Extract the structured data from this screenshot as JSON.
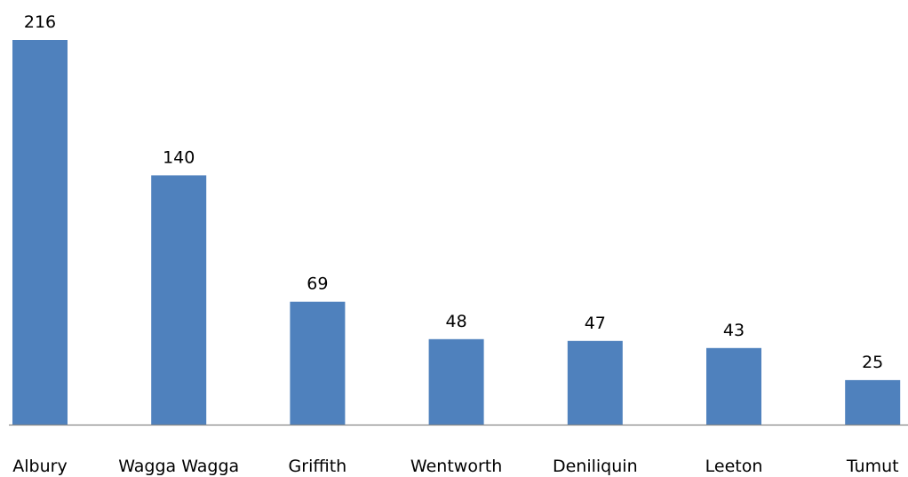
{
  "chart_data": {
    "type": "bar",
    "title": "",
    "xlabel": "",
    "ylabel": "",
    "categories": [
      "Albury",
      "Wagga Wagga",
      "Griffith",
      "Wentworth",
      "Deniliquin",
      "Leeton",
      "Tumut"
    ],
    "series": [
      {
        "values": [
          216,
          140,
          69,
          48,
          47,
          43,
          25
        ]
      }
    ],
    "ylim": [
      0,
      216
    ],
    "data_labels": true,
    "grid": false,
    "legend": "none",
    "bar_color": "#4f81bd"
  }
}
